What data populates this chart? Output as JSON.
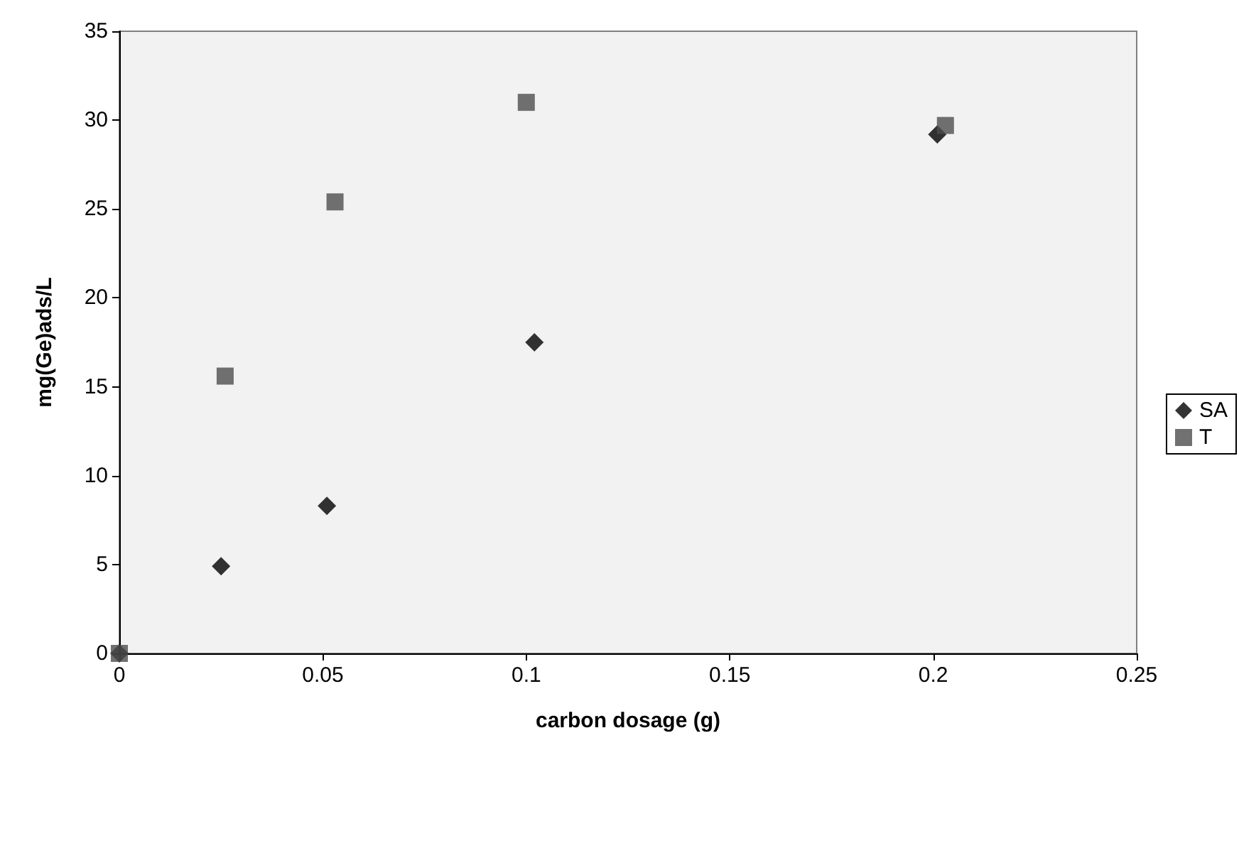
{
  "chart_data": {
    "type": "scatter",
    "xlabel": "carbon dosage (g)",
    "ylabel": "mg(Ge)ads/L",
    "xlim": [
      0,
      0.25
    ],
    "xticks": [
      0,
      0.05,
      0.1,
      0.15,
      0.2,
      0.25
    ],
    "ylim": [
      0,
      35
    ],
    "yticks": [
      0,
      5,
      10,
      15,
      20,
      25,
      30,
      35
    ],
    "grid": false,
    "legend": "right",
    "series": [
      {
        "name": "SA",
        "color": "#000000",
        "marker": "diamond",
        "x": [
          0,
          0.025,
          0.051,
          0.102,
          0.201
        ],
        "values": [
          0,
          4.9,
          8.3,
          17.5,
          29.2
        ]
      },
      {
        "name": "T",
        "color": "#4d4d4d",
        "marker": "square",
        "x": [
          0,
          0.026,
          0.053,
          0.1,
          0.203
        ],
        "values": [
          0,
          15.6,
          25.4,
          31.0,
          29.7
        ]
      }
    ]
  }
}
